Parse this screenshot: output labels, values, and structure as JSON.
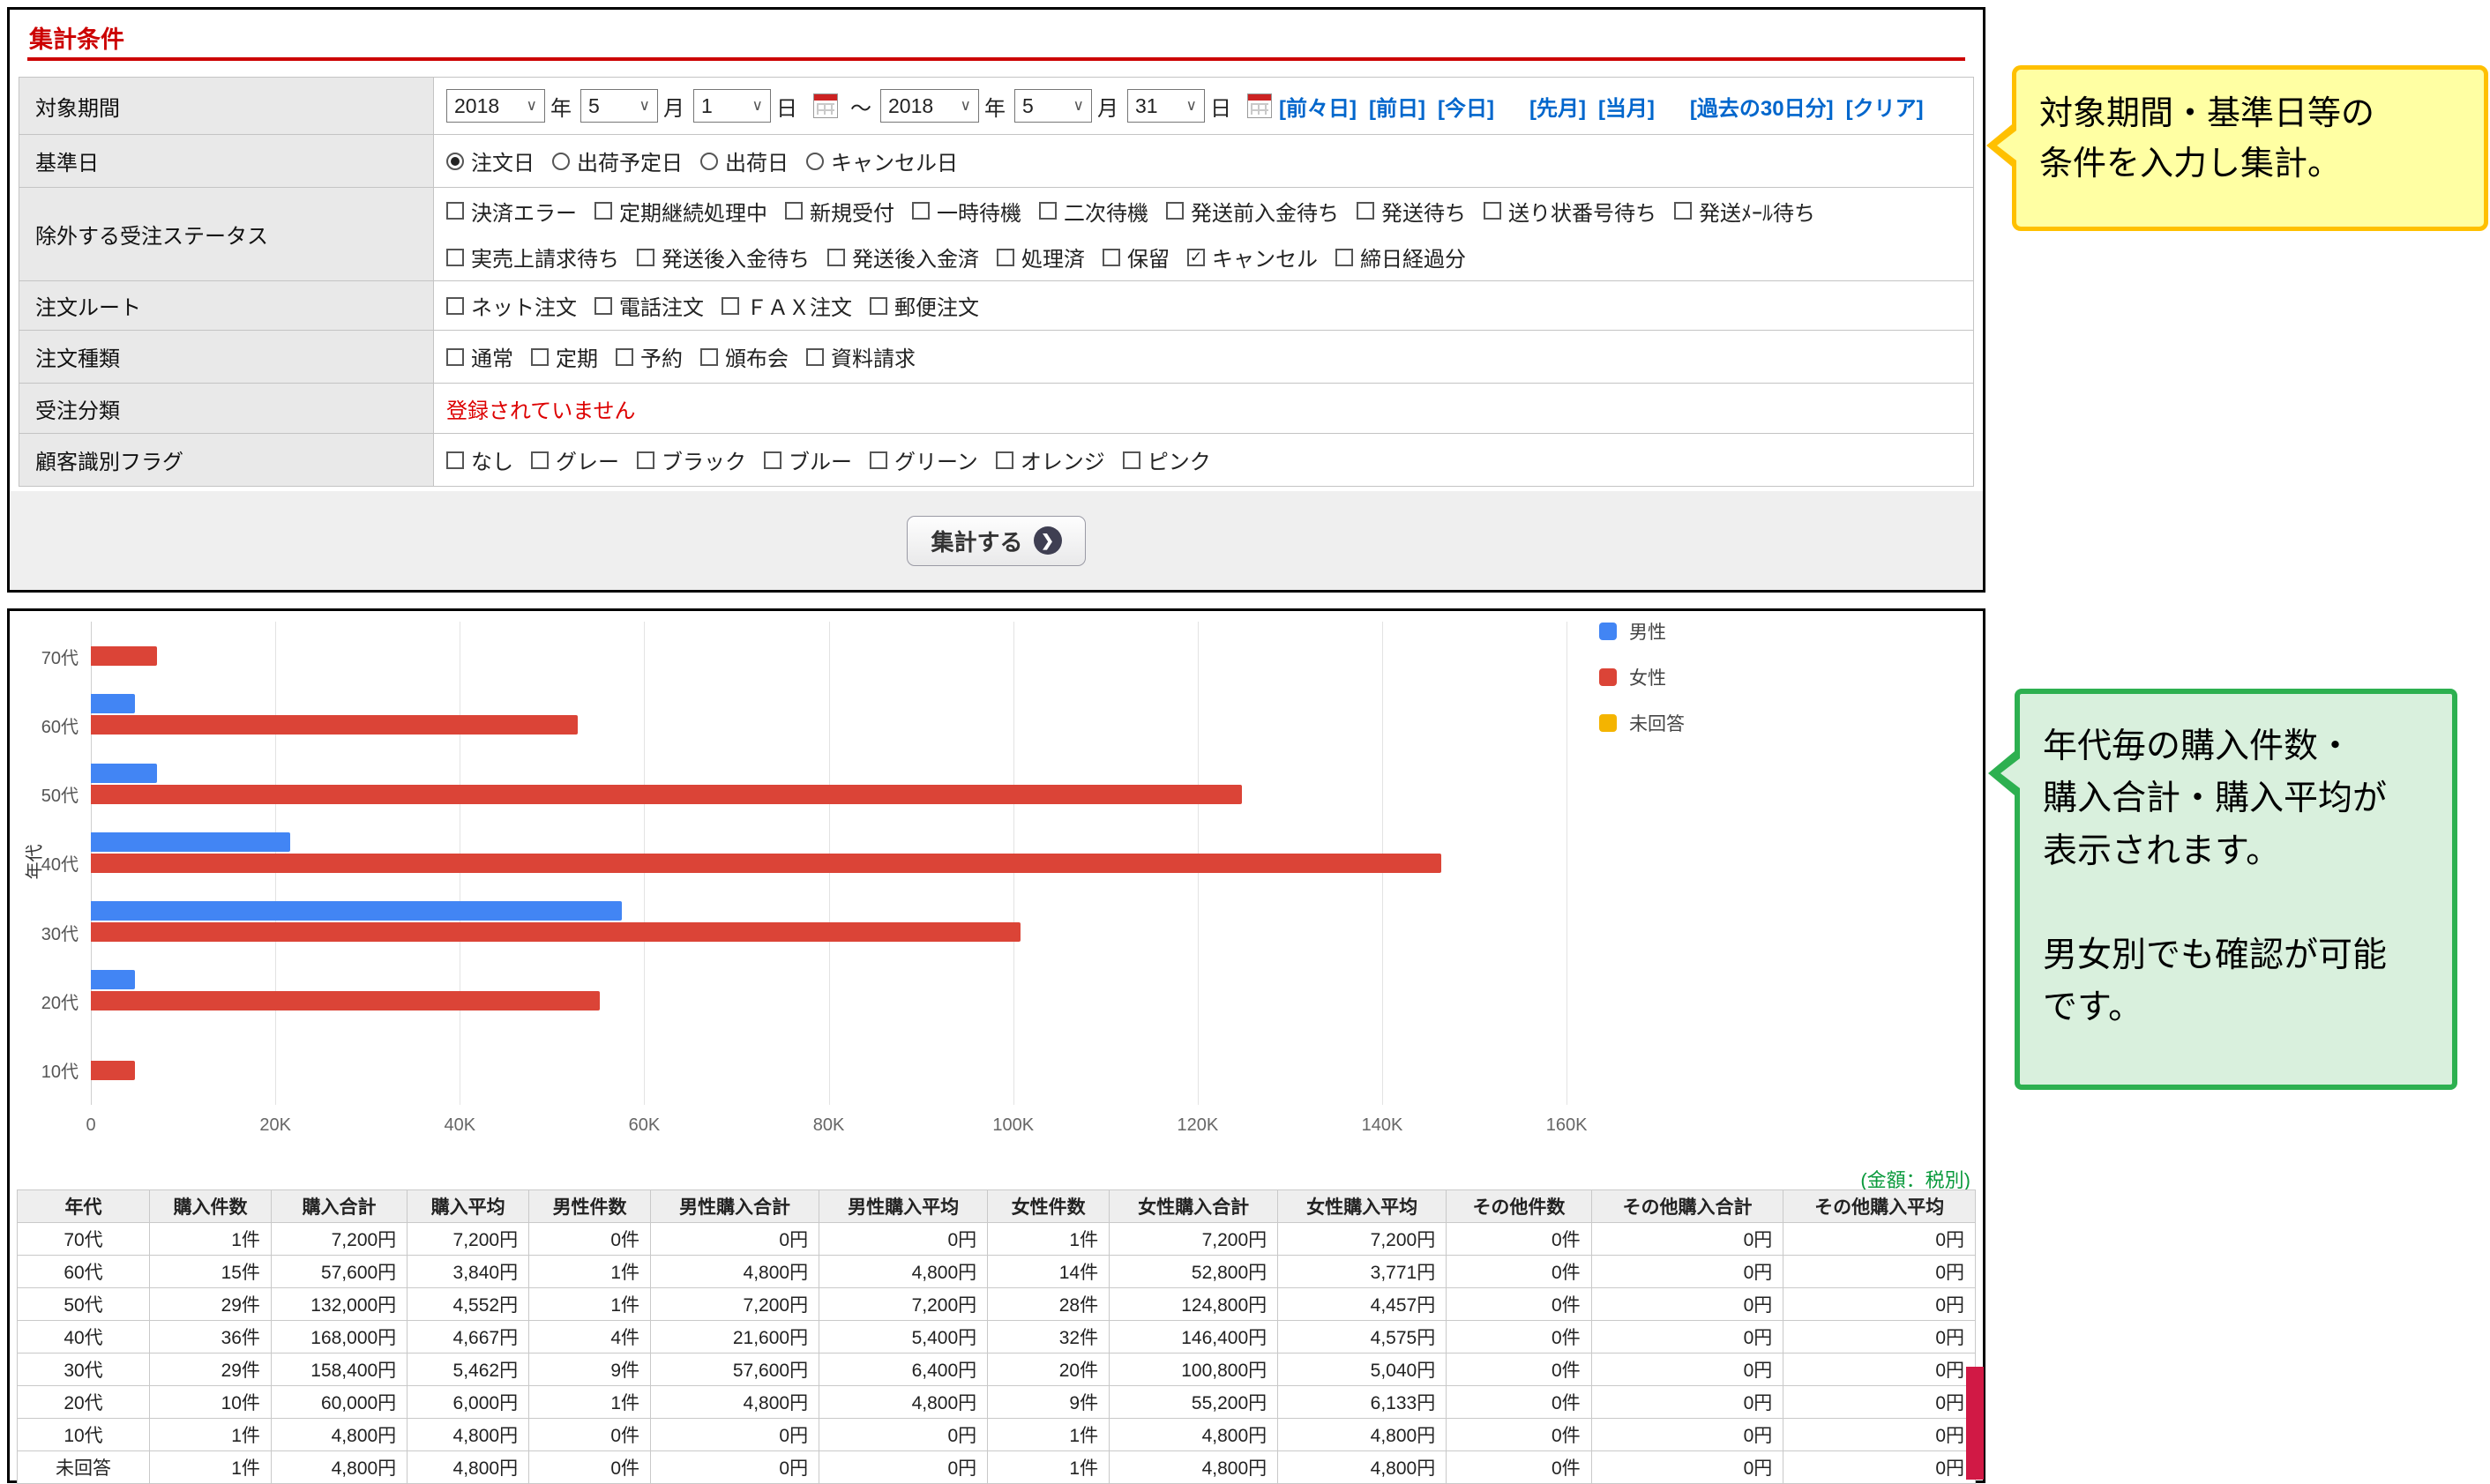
{
  "form": {
    "title": "集計条件",
    "period": {
      "label": "対象期間",
      "from": {
        "year": "2018",
        "month": "5",
        "day": "1"
      },
      "to": {
        "year": "2018",
        "month": "5",
        "day": "31"
      },
      "unit_year": "年",
      "unit_month": "月",
      "unit_day": "日",
      "separator": "～",
      "link_groups": [
        [
          "[前々日]",
          "[前日]",
          "[今日]"
        ],
        [
          "[先月]",
          "[当月]"
        ],
        [
          "[過去の30日分]",
          "[クリア]"
        ]
      ]
    },
    "base_date": {
      "label": "基準日",
      "options": [
        {
          "label": "注文日",
          "selected": true
        },
        {
          "label": "出荷予定日",
          "selected": false
        },
        {
          "label": "出荷日",
          "selected": false
        },
        {
          "label": "キャンセル日",
          "selected": false
        }
      ]
    },
    "exclude_status": {
      "label": "除外する受注ステータス",
      "options": [
        {
          "label": "決済エラー",
          "checked": false
        },
        {
          "label": "定期継続処理中",
          "checked": false
        },
        {
          "label": "新規受付",
          "checked": false
        },
        {
          "label": "一時待機",
          "checked": false
        },
        {
          "label": "二次待機",
          "checked": false
        },
        {
          "label": "発送前入金待ち",
          "checked": false
        },
        {
          "label": "発送待ち",
          "checked": false
        },
        {
          "label": "送り状番号待ち",
          "checked": false
        },
        {
          "label": "発送ﾒｰﾙ待ち",
          "checked": false
        },
        {
          "label": "実売上請求待ち",
          "checked": false
        },
        {
          "label": "発送後入金待ち",
          "checked": false
        },
        {
          "label": "発送後入金済",
          "checked": false
        },
        {
          "label": "処理済",
          "checked": false
        },
        {
          "label": "保留",
          "checked": false
        },
        {
          "label": "キャンセル",
          "checked": true
        },
        {
          "label": "締日経過分",
          "checked": false
        }
      ]
    },
    "order_route": {
      "label": "注文ルート",
      "options": [
        {
          "label": "ネット注文",
          "checked": false
        },
        {
          "label": "電話注文",
          "checked": false
        },
        {
          "label": "ＦＡＸ注文",
          "checked": false
        },
        {
          "label": "郵便注文",
          "checked": false
        }
      ]
    },
    "order_type": {
      "label": "注文種類",
      "options": [
        {
          "label": "通常",
          "checked": false
        },
        {
          "label": "定期",
          "checked": false
        },
        {
          "label": "予約",
          "checked": false
        },
        {
          "label": "頒布会",
          "checked": false
        },
        {
          "label": "資料請求",
          "checked": false
        }
      ]
    },
    "order_class": {
      "label": "受注分類",
      "message": "登録されていません"
    },
    "customer_flag": {
      "label": "顧客識別フラグ",
      "options": [
        {
          "label": "なし",
          "checked": false
        },
        {
          "label": "グレー",
          "checked": false
        },
        {
          "label": "ブラック",
          "checked": false
        },
        {
          "label": "ブルー",
          "checked": false
        },
        {
          "label": "グリーン",
          "checked": false
        },
        {
          "label": "オレンジ",
          "checked": false
        },
        {
          "label": "ピンク",
          "checked": false
        }
      ]
    },
    "submit_label": "集計する"
  },
  "callouts": {
    "top": {
      "lines": [
        "対象期間・基準日等の",
        "条件を入力し集計。"
      ]
    },
    "bottom": {
      "lines": [
        "年代毎の購入件数・",
        "購入合計・購入平均が",
        "表示されます。",
        "",
        "男女別でも確認が可能",
        "です。"
      ]
    }
  },
  "chart_data": {
    "type": "bar",
    "orientation": "horizontal",
    "title": "",
    "xlabel": "",
    "ylabel": "年代",
    "categories": [
      "70代",
      "60代",
      "50代",
      "40代",
      "30代",
      "20代",
      "10代"
    ],
    "series": [
      {
        "name": "男性",
        "color": "#4285f4",
        "values": [
          0,
          4800,
          7200,
          21600,
          57600,
          4800,
          0
        ]
      },
      {
        "name": "女性",
        "color": "#db4437",
        "values": [
          7200,
          52800,
          124800,
          146400,
          100800,
          55200,
          4800
        ]
      },
      {
        "name": "未回答",
        "color": "#f4b400",
        "values": [
          0,
          0,
          0,
          0,
          0,
          0,
          0
        ]
      }
    ],
    "xlim": [
      0,
      161616
    ],
    "xticks": [
      {
        "value": 0,
        "label": "0"
      },
      {
        "value": 20000,
        "label": "20K"
      },
      {
        "value": 40000,
        "label": "40K"
      },
      {
        "value": 60000,
        "label": "60K"
      },
      {
        "value": 80000,
        "label": "80K"
      },
      {
        "value": 100000,
        "label": "100K"
      },
      {
        "value": 120000,
        "label": "120K"
      },
      {
        "value": 140000,
        "label": "140K"
      },
      {
        "value": 160000,
        "label": "160K"
      }
    ],
    "grid": true,
    "legend_position": "right"
  },
  "table": {
    "note": "(金額：税別)",
    "headers": [
      "年代",
      "購入件数",
      "購入合計",
      "購入平均",
      "男性件数",
      "男性購入合計",
      "男性購入平均",
      "女性件数",
      "女性購入合計",
      "女性購入平均",
      "その他件数",
      "その他購入合計",
      "その他購入平均"
    ],
    "rows": [
      [
        "70代",
        "1件",
        "7,200円",
        "7,200円",
        "0件",
        "0円",
        "0円",
        "1件",
        "7,200円",
        "7,200円",
        "0件",
        "0円",
        "0円"
      ],
      [
        "60代",
        "15件",
        "57,600円",
        "3,840円",
        "1件",
        "4,800円",
        "4,800円",
        "14件",
        "52,800円",
        "3,771円",
        "0件",
        "0円",
        "0円"
      ],
      [
        "50代",
        "29件",
        "132,000円",
        "4,552円",
        "1件",
        "7,200円",
        "7,200円",
        "28件",
        "124,800円",
        "4,457円",
        "0件",
        "0円",
        "0円"
      ],
      [
        "40代",
        "36件",
        "168,000円",
        "4,667円",
        "4件",
        "21,600円",
        "5,400円",
        "32件",
        "146,400円",
        "4,575円",
        "0件",
        "0円",
        "0円"
      ],
      [
        "30代",
        "29件",
        "158,400円",
        "5,462円",
        "9件",
        "57,600円",
        "6,400円",
        "20件",
        "100,800円",
        "5,040円",
        "0件",
        "0円",
        "0円"
      ],
      [
        "20代",
        "10件",
        "60,000円",
        "6,000円",
        "1件",
        "4,800円",
        "4,800円",
        "9件",
        "55,200円",
        "6,133円",
        "0件",
        "0円",
        "0円"
      ],
      [
        "10代",
        "1件",
        "4,800円",
        "4,800円",
        "0件",
        "0円",
        "0円",
        "1件",
        "4,800円",
        "4,800円",
        "0件",
        "0円",
        "0円"
      ],
      [
        "未回答",
        "1件",
        "4,800円",
        "4,800円",
        "0件",
        "0円",
        "0円",
        "1件",
        "4,800円",
        "4,800円",
        "0件",
        "0円",
        "0円"
      ]
    ]
  }
}
